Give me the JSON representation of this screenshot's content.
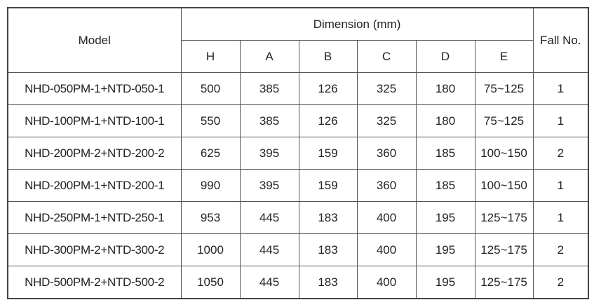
{
  "table": {
    "header": {
      "model": "Model",
      "dimension": "Dimension (mm)",
      "fall": "Fall No.",
      "columns": [
        "H",
        "A",
        "B",
        "C",
        "D",
        "E"
      ]
    },
    "rows": [
      [
        "NHD-050PM-1+NTD-050-1",
        500,
        385,
        126,
        325,
        180,
        "75~125",
        1
      ],
      [
        "NHD-100PM-1+NTD-100-1",
        550,
        385,
        126,
        325,
        180,
        "75~125",
        1
      ],
      [
        "NHD-200PM-2+NTD-200-2",
        625,
        395,
        159,
        360,
        185,
        "100~150",
        2
      ],
      [
        "NHD-200PM-1+NTD-200-1",
        990,
        395,
        159,
        360,
        185,
        "100~150",
        1
      ],
      [
        "NHD-250PM-1+NTD-250-1",
        953,
        445,
        183,
        400,
        195,
        "125~175",
        1
      ],
      [
        "NHD-300PM-2+NTD-300-2",
        1000,
        445,
        183,
        400,
        195,
        "125~175",
        2
      ],
      [
        "NHD-500PM-2+NTD-500-2",
        1050,
        445,
        183,
        400,
        195,
        "125~175",
        2
      ]
    ]
  }
}
